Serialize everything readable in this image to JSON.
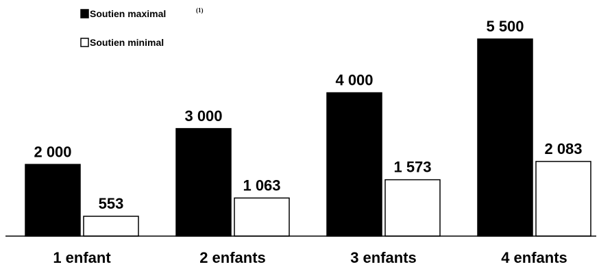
{
  "chart_data": {
    "type": "bar",
    "categories": [
      "1 enfant",
      "2 enfants",
      "3 enfants",
      "4 enfants"
    ],
    "series": [
      {
        "name": "Soutien maximal",
        "note": "(1)",
        "color": "#000000",
        "values": [
          2000,
          3000,
          4000,
          5500
        ],
        "labels": [
          "2 000",
          "3 000",
          "4 000",
          "5 500"
        ]
      },
      {
        "name": "Soutien minimal",
        "color": "#ffffff",
        "values": [
          553,
          1063,
          1573,
          2083
        ],
        "labels": [
          "553",
          "1 063",
          "1 573",
          "2 083"
        ]
      }
    ],
    "ylim": [
      0,
      5500
    ],
    "grid": false,
    "legend_position": "top-left"
  }
}
